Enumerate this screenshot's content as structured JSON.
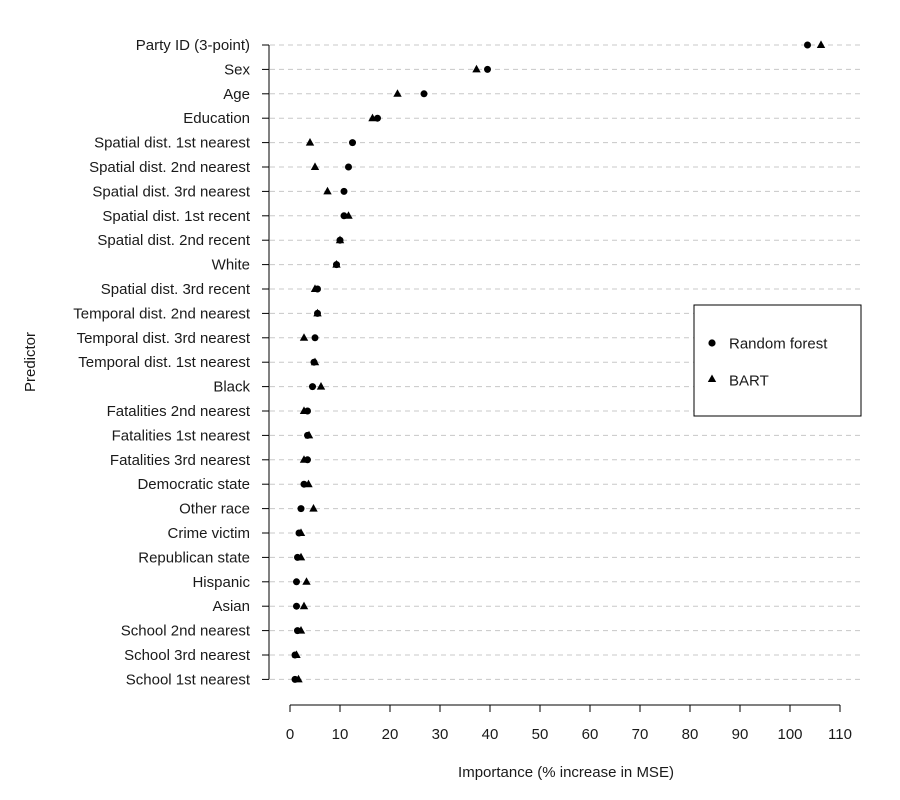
{
  "chart_data": {
    "type": "dot",
    "title": "",
    "xlabel": "Importance (% increase in MSE)",
    "ylabel": "Predictor",
    "xlim": [
      0,
      110
    ],
    "xticks": [
      0,
      10,
      20,
      30,
      40,
      50,
      60,
      70,
      80,
      90,
      100,
      110
    ],
    "grid": "horizontal dashed",
    "legend_position": "right",
    "categories": [
      "Party ID (3-point)",
      "Sex",
      "Age",
      "Education",
      "Spatial dist. 1st nearest",
      "Spatial dist. 2nd nearest",
      "Spatial dist. 3rd nearest",
      "Spatial dist. 1st recent",
      "Spatial dist. 2nd recent",
      "White",
      "Spatial dist. 3rd recent",
      "Temporal dist. 2nd nearest",
      "Temporal dist. 3rd nearest",
      "Temporal dist. 1st nearest",
      "Black",
      "Fatalities 2nd nearest",
      "Fatalities 1st nearest",
      "Fatalities 3rd nearest",
      "Democratic state",
      "Other race",
      "Crime victim",
      "Republican state",
      "Hispanic",
      "Asian",
      "School 2nd nearest",
      "School 3rd nearest",
      "School 1st nearest"
    ],
    "series": [
      {
        "name": "Random forest",
        "marker": "circle",
        "values": [
          103.5,
          39.5,
          26.8,
          17.5,
          12.5,
          11.7,
          10.8,
          10.8,
          10.0,
          9.3,
          5.5,
          5.5,
          5.0,
          4.8,
          4.5,
          3.5,
          3.5,
          3.5,
          2.8,
          2.2,
          1.8,
          1.5,
          1.3,
          1.3,
          1.5,
          1.0,
          1.0
        ]
      },
      {
        "name": "BART",
        "marker": "triangle",
        "values": [
          106.2,
          37.3,
          21.5,
          16.5,
          4.0,
          5.0,
          7.5,
          11.7,
          10.0,
          9.3,
          5.0,
          5.5,
          2.8,
          5.0,
          6.2,
          2.8,
          3.8,
          2.8,
          3.7,
          4.7,
          2.2,
          2.2,
          3.3,
          2.8,
          2.2,
          1.3,
          1.7
        ]
      }
    ]
  }
}
